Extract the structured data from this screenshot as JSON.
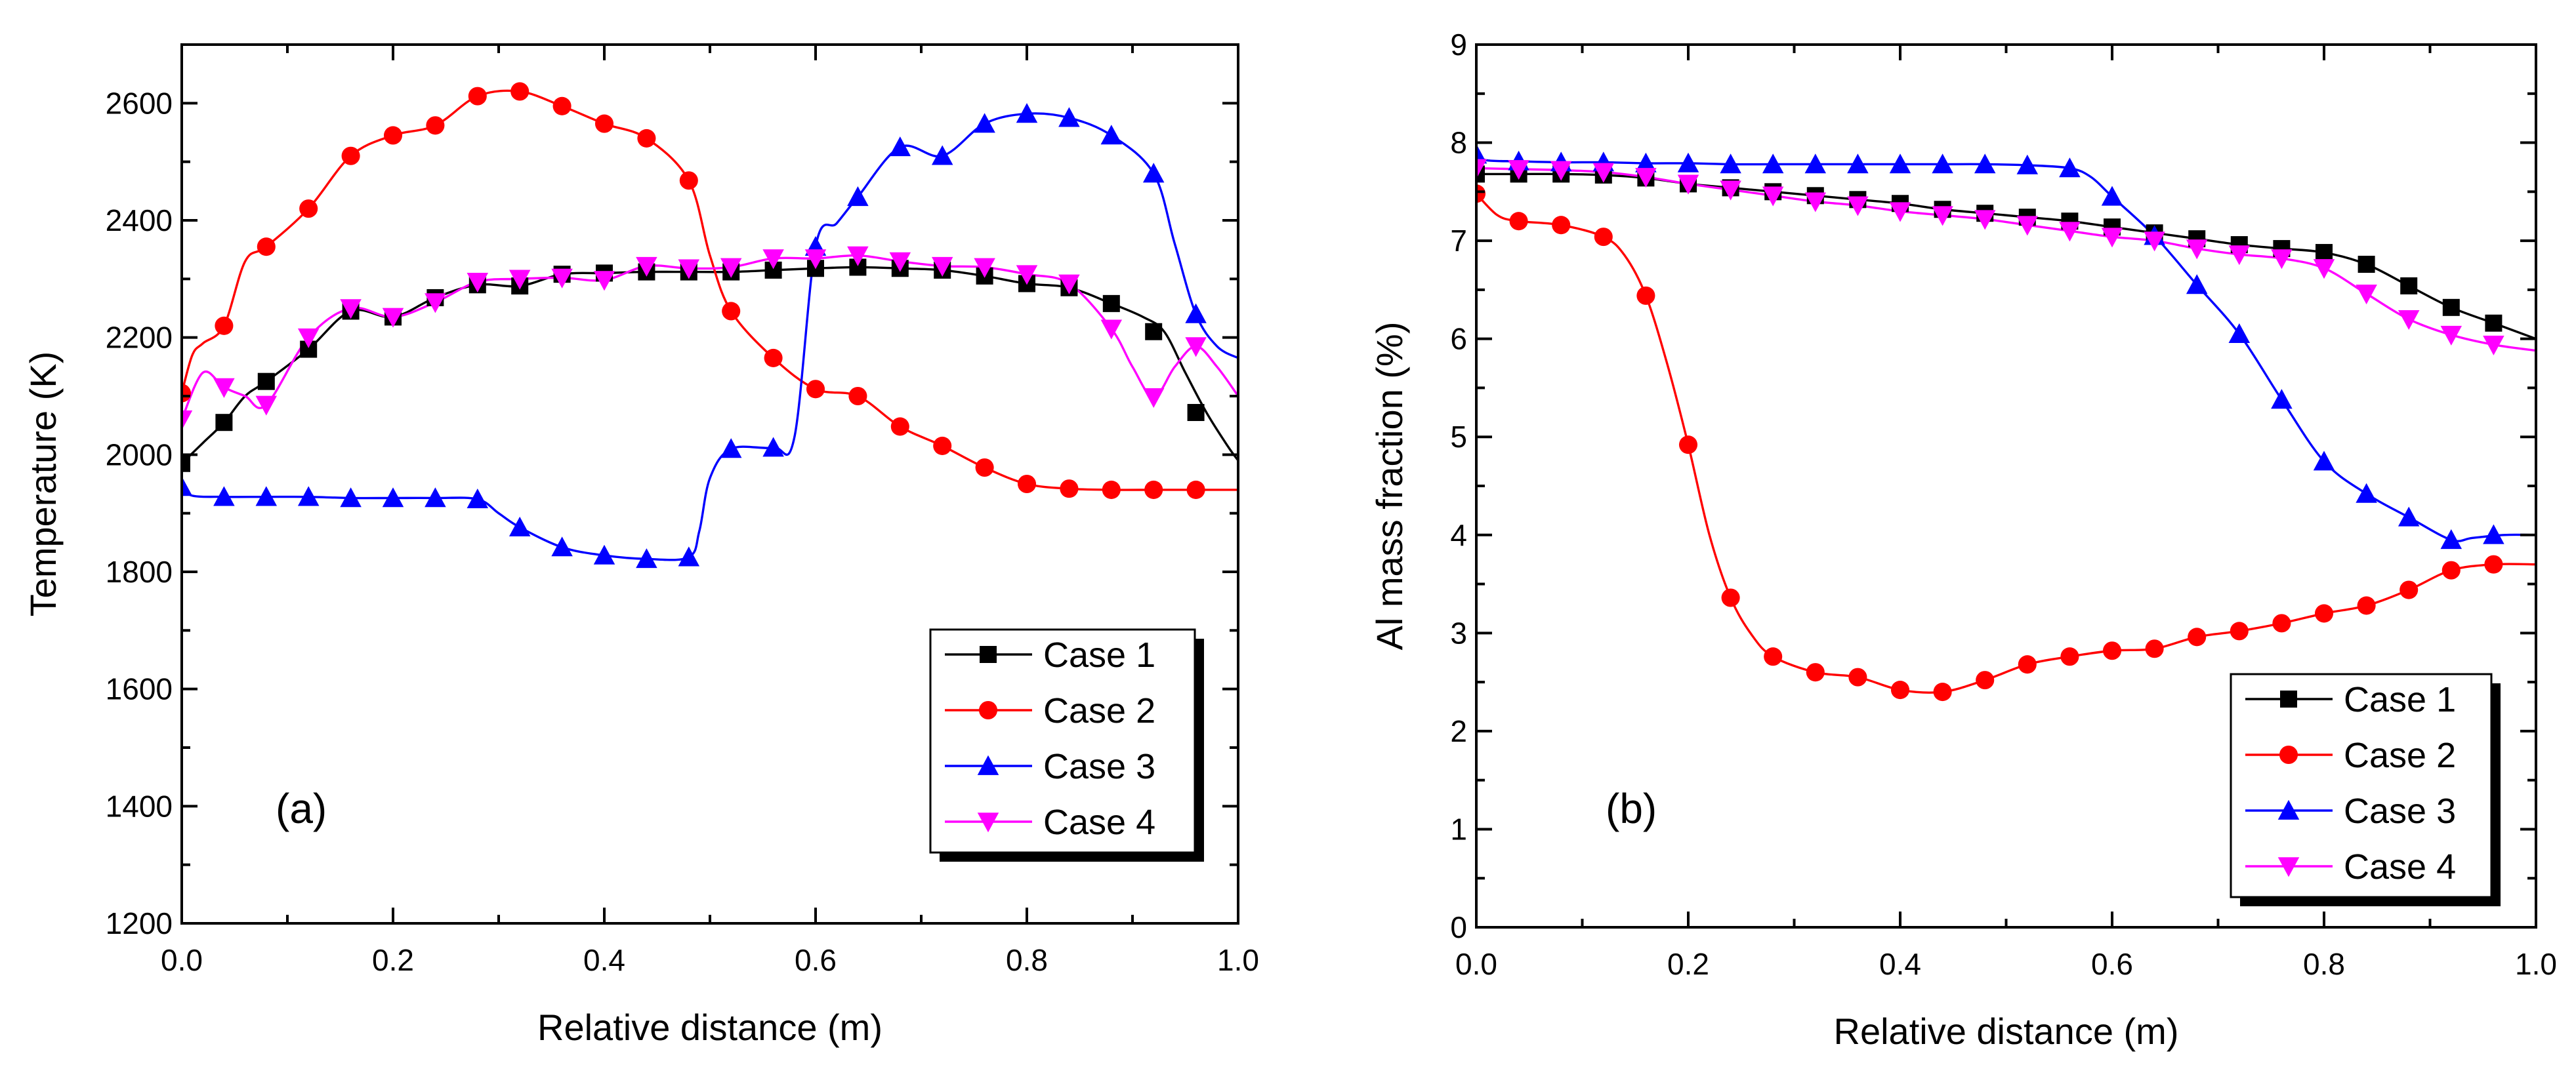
{
  "chart_data": [
    {
      "type": "line",
      "panel_label": "(a)",
      "xlabel": "Relative distance (m)",
      "ylabel": "Temperature (K)",
      "xlim": [
        0,
        1.0
      ],
      "ylim": [
        1200,
        2700
      ],
      "xticks": [
        0.0,
        0.2,
        0.4,
        0.6,
        0.8,
        1.0
      ],
      "xtick_labels": [
        "0.0",
        "0.2",
        "0.4",
        "0.6",
        "0.8",
        "1.0"
      ],
      "yticks": [
        1200,
        1400,
        1600,
        1800,
        2000,
        2200,
        2400,
        2600
      ],
      "ytick_labels": [
        "1200",
        "1400",
        "1600",
        "1800",
        "2000",
        "2200",
        "2400",
        "2600"
      ],
      "legend_position": "bottom-right",
      "series": [
        {
          "name": "Case 1",
          "color": "#000000",
          "marker": "square",
          "line_x": [
            0,
            0.02,
            0.04,
            0.06,
            0.08,
            0.12,
            0.16,
            0.2,
            0.24,
            0.28,
            0.32,
            0.36,
            0.4,
            0.44,
            0.48,
            0.52,
            0.56,
            0.6,
            0.64,
            0.68,
            0.72,
            0.76,
            0.8,
            0.84,
            0.88,
            0.91,
            0.93,
            0.95,
            0.97,
            0.99,
            1.0
          ],
          "line_y": [
            1985,
            2020,
            2055,
            2100,
            2125,
            2180,
            2245,
            2235,
            2268,
            2290,
            2288,
            2308,
            2310,
            2312,
            2312,
            2312,
            2315,
            2318,
            2320,
            2318,
            2315,
            2305,
            2292,
            2285,
            2258,
            2235,
            2210,
            2140,
            2072,
            2015,
            1990
          ],
          "marker_x": [
            0,
            0.04,
            0.08,
            0.12,
            0.16,
            0.2,
            0.24,
            0.28,
            0.32,
            0.36,
            0.4,
            0.44,
            0.48,
            0.52,
            0.56,
            0.6,
            0.64,
            0.68,
            0.72,
            0.76,
            0.8,
            0.84,
            0.88,
            0.92,
            0.96
          ],
          "marker_y": [
            1985,
            2055,
            2125,
            2180,
            2245,
            2235,
            2268,
            2290,
            2288,
            2308,
            2310,
            2312,
            2312,
            2312,
            2315,
            2318,
            2320,
            2318,
            2315,
            2305,
            2292,
            2285,
            2258,
            2210,
            2072
          ]
        },
        {
          "name": "Case 2",
          "color": "#ff0000",
          "marker": "circle",
          "line_x": [
            0,
            0.01,
            0.02,
            0.04,
            0.06,
            0.08,
            0.12,
            0.16,
            0.2,
            0.24,
            0.28,
            0.32,
            0.36,
            0.4,
            0.44,
            0.48,
            0.5,
            0.52,
            0.56,
            0.6,
            0.64,
            0.68,
            0.72,
            0.76,
            0.8,
            0.84,
            0.88,
            0.92,
            0.96,
            1.0
          ],
          "line_y": [
            2105,
            2170,
            2190,
            2220,
            2330,
            2355,
            2420,
            2510,
            2545,
            2562,
            2612,
            2620,
            2595,
            2565,
            2540,
            2468,
            2340,
            2245,
            2165,
            2112,
            2100,
            2048,
            2015,
            1978,
            1950,
            1942,
            1940,
            1940,
            1940,
            1940
          ],
          "marker_x": [
            0,
            0.04,
            0.08,
            0.12,
            0.16,
            0.2,
            0.24,
            0.28,
            0.32,
            0.36,
            0.4,
            0.44,
            0.48,
            0.52,
            0.56,
            0.6,
            0.64,
            0.68,
            0.72,
            0.76,
            0.8,
            0.84,
            0.88,
            0.92,
            0.96
          ],
          "marker_y": [
            2105,
            2220,
            2355,
            2420,
            2510,
            2545,
            2562,
            2612,
            2620,
            2595,
            2565,
            2540,
            2468,
            2245,
            2165,
            2112,
            2100,
            2048,
            2015,
            1978,
            1950,
            1942,
            1940,
            1940,
            1940
          ]
        },
        {
          "name": "Case 3",
          "color": "#0000ff",
          "marker": "triangle-up",
          "line_x": [
            0,
            0.01,
            0.04,
            0.08,
            0.12,
            0.16,
            0.2,
            0.24,
            0.28,
            0.3,
            0.32,
            0.36,
            0.4,
            0.44,
            0.48,
            0.49,
            0.5,
            0.52,
            0.56,
            0.58,
            0.6,
            0.62,
            0.64,
            0.68,
            0.72,
            0.76,
            0.8,
            0.84,
            0.88,
            0.92,
            0.94,
            0.96,
            0.98,
            1.0
          ],
          "line_y": [
            1945,
            1930,
            1928,
            1928,
            1928,
            1926,
            1926,
            1926,
            1924,
            1900,
            1876,
            1842,
            1828,
            1822,
            1825,
            1870,
            1960,
            2010,
            2012,
            2030,
            2355,
            2395,
            2440,
            2525,
            2510,
            2565,
            2582,
            2575,
            2545,
            2480,
            2360,
            2240,
            2185,
            2165
          ],
          "marker_x": [
            0,
            0.04,
            0.08,
            0.12,
            0.16,
            0.2,
            0.24,
            0.28,
            0.32,
            0.36,
            0.4,
            0.44,
            0.48,
            0.52,
            0.56,
            0.6,
            0.64,
            0.68,
            0.72,
            0.76,
            0.8,
            0.84,
            0.88,
            0.92,
            0.96
          ],
          "marker_y": [
            1945,
            1928,
            1928,
            1928,
            1926,
            1926,
            1926,
            1924,
            1876,
            1842,
            1828,
            1822,
            1825,
            2010,
            2012,
            2355,
            2440,
            2525,
            2510,
            2565,
            2582,
            2575,
            2545,
            2480,
            2240
          ]
        },
        {
          "name": "Case 4",
          "color": "#ff00ff",
          "marker": "triangle-down",
          "line_x": [
            0,
            0.02,
            0.04,
            0.06,
            0.08,
            0.12,
            0.16,
            0.2,
            0.24,
            0.28,
            0.32,
            0.36,
            0.4,
            0.44,
            0.48,
            0.52,
            0.56,
            0.6,
            0.64,
            0.68,
            0.72,
            0.76,
            0.8,
            0.84,
            0.88,
            0.9,
            0.92,
            0.94,
            0.96,
            0.98,
            1.0
          ],
          "line_y": [
            2060,
            2140,
            2115,
            2100,
            2085,
            2200,
            2250,
            2235,
            2260,
            2295,
            2300,
            2302,
            2298,
            2322,
            2318,
            2320,
            2335,
            2335,
            2340,
            2330,
            2322,
            2320,
            2308,
            2292,
            2215,
            2150,
            2098,
            2150,
            2185,
            2150,
            2100
          ],
          "marker_x": [
            0,
            0.04,
            0.08,
            0.12,
            0.16,
            0.2,
            0.24,
            0.28,
            0.32,
            0.36,
            0.4,
            0.44,
            0.48,
            0.52,
            0.56,
            0.6,
            0.64,
            0.68,
            0.72,
            0.76,
            0.8,
            0.84,
            0.88,
            0.92,
            0.96
          ],
          "marker_y": [
            2060,
            2115,
            2085,
            2200,
            2250,
            2235,
            2260,
            2295,
            2300,
            2302,
            2298,
            2322,
            2318,
            2320,
            2335,
            2335,
            2340,
            2330,
            2322,
            2320,
            2308,
            2292,
            2215,
            2098,
            2185
          ]
        }
      ]
    },
    {
      "type": "line",
      "panel_label": "(b)",
      "xlabel": "Relative distance (m)",
      "ylabel": "Al mass fraction (%)",
      "xlim": [
        0,
        1.0
      ],
      "ylim": [
        0,
        9
      ],
      "xticks": [
        0.0,
        0.2,
        0.4,
        0.6,
        0.8,
        1.0
      ],
      "xtick_labels": [
        "0.0",
        "0.2",
        "0.4",
        "0.6",
        "0.8",
        "1.0"
      ],
      "yticks": [
        0,
        1,
        2,
        3,
        4,
        5,
        6,
        7,
        8,
        9
      ],
      "ytick_labels": [
        "0",
        "1",
        "2",
        "3",
        "4",
        "5",
        "6",
        "7",
        "8",
        "9"
      ],
      "legend_position": "bottom-right",
      "series": [
        {
          "name": "Case 1",
          "color": "#000000",
          "marker": "square",
          "line_x": [
            0,
            0.04,
            0.08,
            0.12,
            0.16,
            0.2,
            0.24,
            0.28,
            0.32,
            0.36,
            0.4,
            0.44,
            0.48,
            0.52,
            0.56,
            0.6,
            0.64,
            0.68,
            0.72,
            0.76,
            0.8,
            0.84,
            0.88,
            0.92,
            0.96,
            1.0
          ],
          "line_y": [
            7.68,
            7.68,
            7.68,
            7.67,
            7.64,
            7.58,
            7.54,
            7.5,
            7.46,
            7.42,
            7.38,
            7.32,
            7.28,
            7.24,
            7.2,
            7.14,
            7.08,
            7.02,
            6.96,
            6.92,
            6.88,
            6.76,
            6.54,
            6.32,
            6.16,
            6.0
          ],
          "marker_x": [
            0,
            0.04,
            0.08,
            0.12,
            0.16,
            0.2,
            0.24,
            0.28,
            0.32,
            0.36,
            0.4,
            0.44,
            0.48,
            0.52,
            0.56,
            0.6,
            0.64,
            0.68,
            0.72,
            0.76,
            0.8,
            0.84,
            0.88,
            0.92,
            0.96
          ],
          "marker_y": [
            7.68,
            7.68,
            7.68,
            7.67,
            7.64,
            7.58,
            7.54,
            7.5,
            7.46,
            7.42,
            7.38,
            7.32,
            7.28,
            7.24,
            7.2,
            7.14,
            7.08,
            7.02,
            6.96,
            6.92,
            6.88,
            6.76,
            6.54,
            6.32,
            6.16
          ]
        },
        {
          "name": "Case 2",
          "color": "#ff0000",
          "marker": "circle",
          "line_x": [
            0,
            0.02,
            0.04,
            0.08,
            0.12,
            0.14,
            0.16,
            0.18,
            0.2,
            0.22,
            0.24,
            0.26,
            0.28,
            0.32,
            0.36,
            0.4,
            0.44,
            0.48,
            0.52,
            0.56,
            0.6,
            0.64,
            0.68,
            0.72,
            0.76,
            0.8,
            0.84,
            0.88,
            0.92,
            0.96,
            1.0
          ],
          "line_y": [
            7.48,
            7.26,
            7.2,
            7.16,
            7.04,
            6.85,
            6.44,
            5.75,
            4.92,
            4.0,
            3.36,
            2.98,
            2.76,
            2.6,
            2.55,
            2.42,
            2.4,
            2.52,
            2.68,
            2.76,
            2.82,
            2.84,
            2.96,
            3.02,
            3.1,
            3.2,
            3.28,
            3.44,
            3.64,
            3.7,
            3.7
          ],
          "marker_x": [
            0,
            0.04,
            0.08,
            0.12,
            0.16,
            0.2,
            0.24,
            0.28,
            0.32,
            0.36,
            0.4,
            0.44,
            0.48,
            0.52,
            0.56,
            0.6,
            0.64,
            0.68,
            0.72,
            0.76,
            0.8,
            0.84,
            0.88,
            0.92,
            0.96
          ],
          "marker_y": [
            7.48,
            7.2,
            7.16,
            7.04,
            6.44,
            4.92,
            3.36,
            2.76,
            2.6,
            2.55,
            2.42,
            2.4,
            2.52,
            2.68,
            2.76,
            2.82,
            2.84,
            2.96,
            3.02,
            3.1,
            3.2,
            3.28,
            3.44,
            3.64,
            3.7
          ]
        },
        {
          "name": "Case 3",
          "color": "#0000ff",
          "marker": "triangle-up",
          "line_x": [
            0,
            0.01,
            0.04,
            0.08,
            0.12,
            0.16,
            0.2,
            0.24,
            0.28,
            0.32,
            0.36,
            0.4,
            0.44,
            0.48,
            0.52,
            0.56,
            0.58,
            0.6,
            0.64,
            0.68,
            0.72,
            0.76,
            0.8,
            0.84,
            0.88,
            0.92,
            0.94,
            0.97,
            1.0
          ],
          "line_y": [
            7.88,
            7.82,
            7.81,
            7.8,
            7.8,
            7.79,
            7.79,
            7.78,
            7.78,
            7.78,
            7.78,
            7.78,
            7.78,
            7.78,
            7.77,
            7.74,
            7.65,
            7.45,
            7.05,
            6.55,
            6.05,
            5.38,
            4.75,
            4.42,
            4.18,
            3.95,
            3.97,
            4.0,
            4.0
          ],
          "marker_x": [
            0,
            0.04,
            0.08,
            0.12,
            0.16,
            0.2,
            0.24,
            0.28,
            0.32,
            0.36,
            0.4,
            0.44,
            0.48,
            0.52,
            0.56,
            0.6,
            0.64,
            0.68,
            0.72,
            0.76,
            0.8,
            0.84,
            0.88,
            0.92,
            0.96
          ],
          "marker_y": [
            7.88,
            7.81,
            7.8,
            7.8,
            7.79,
            7.79,
            7.78,
            7.78,
            7.78,
            7.78,
            7.78,
            7.78,
            7.78,
            7.77,
            7.74,
            7.45,
            7.05,
            6.55,
            6.05,
            5.38,
            4.75,
            4.42,
            4.18,
            3.95,
            4.0
          ]
        },
        {
          "name": "Case 4",
          "color": "#ff00ff",
          "marker": "triangle-down",
          "line_x": [
            0,
            0.04,
            0.08,
            0.12,
            0.16,
            0.2,
            0.24,
            0.28,
            0.32,
            0.36,
            0.4,
            0.44,
            0.48,
            0.52,
            0.56,
            0.6,
            0.64,
            0.68,
            0.72,
            0.76,
            0.8,
            0.84,
            0.88,
            0.92,
            0.96,
            1.0
          ],
          "line_y": [
            7.74,
            7.73,
            7.72,
            7.7,
            7.65,
            7.58,
            7.52,
            7.46,
            7.4,
            7.36,
            7.3,
            7.26,
            7.22,
            7.16,
            7.1,
            7.04,
            7.0,
            6.92,
            6.86,
            6.82,
            6.72,
            6.46,
            6.2,
            6.04,
            5.94,
            5.88
          ],
          "marker_x": [
            0,
            0.04,
            0.08,
            0.12,
            0.16,
            0.2,
            0.24,
            0.28,
            0.32,
            0.36,
            0.4,
            0.44,
            0.48,
            0.52,
            0.56,
            0.6,
            0.64,
            0.68,
            0.72,
            0.76,
            0.8,
            0.84,
            0.88,
            0.92,
            0.96
          ],
          "marker_y": [
            7.74,
            7.73,
            7.72,
            7.7,
            7.65,
            7.58,
            7.52,
            7.46,
            7.4,
            7.36,
            7.3,
            7.26,
            7.22,
            7.16,
            7.1,
            7.04,
            7.0,
            6.92,
            6.86,
            6.82,
            6.72,
            6.46,
            6.2,
            6.04,
            5.94
          ]
        }
      ]
    }
  ]
}
